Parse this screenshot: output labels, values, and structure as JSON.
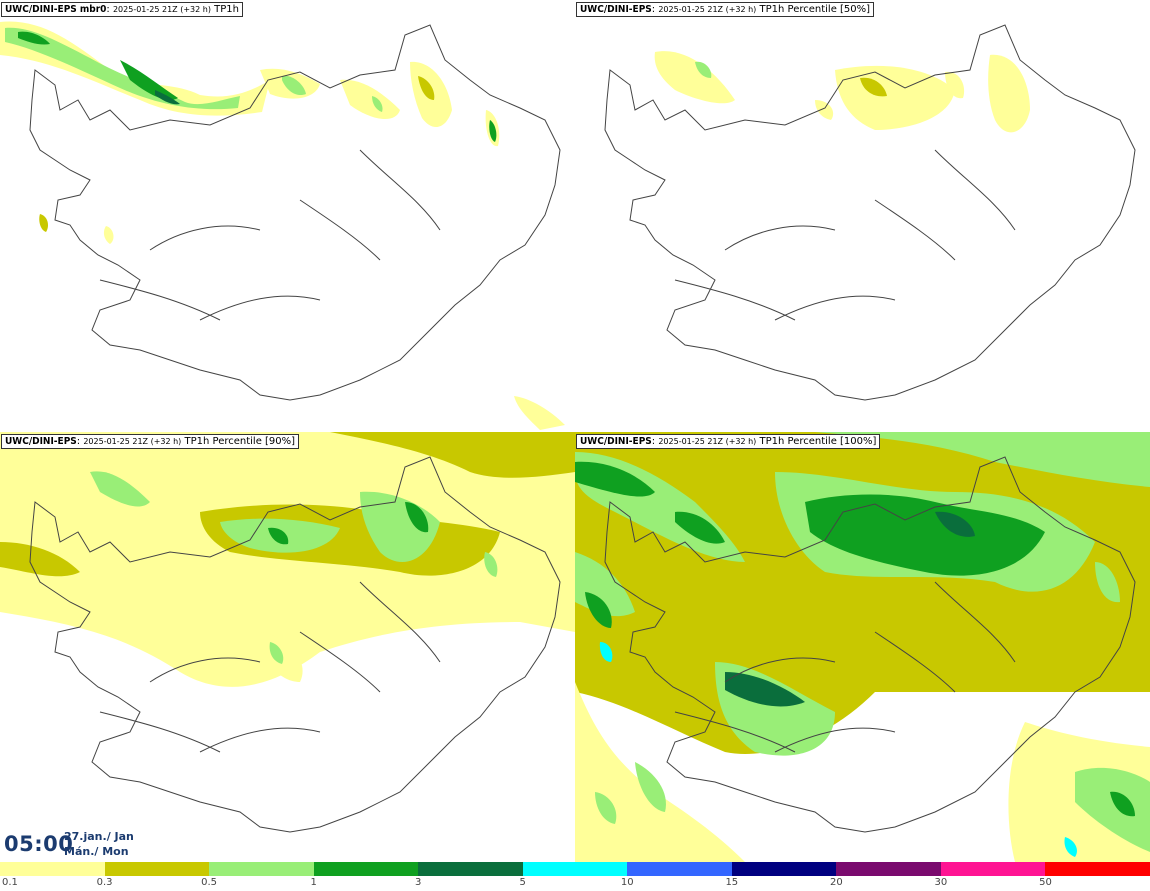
{
  "panels": [
    {
      "model": "UWC/DINI-EPS mbr0",
      "run": "2025-01-25 21Z (+32 h)",
      "field": "TP1h"
    },
    {
      "model": "UWC/DINI-EPS",
      "run": "2025-01-25 21Z (+32 h)",
      "field": "TP1h Percentile [50%]"
    },
    {
      "model": "UWC/DINI-EPS",
      "run": "2025-01-25 21Z (+32 h)",
      "field": "TP1h Percentile [90%]"
    },
    {
      "model": "UWC/DINI-EPS",
      "run": "2025-01-25 21Z (+32 h)",
      "field": "TP1h Percentile [100%]"
    }
  ],
  "time": {
    "clock": "05:00",
    "date": "27.jan./ Jan",
    "weekday": "Mán./ Mon"
  },
  "legend": {
    "colors": [
      "#ffff99",
      "#c8c800",
      "#99ee77",
      "#0fa020",
      "#0a6e3c",
      "#00ffff",
      "#3366ff",
      "#000080",
      "#7a0a6e",
      "#ff1493",
      "#ff0000"
    ],
    "ticks": [
      "0.1",
      "0.3",
      "0.5",
      "1",
      "3",
      "5",
      "10",
      "15",
      "20",
      "30",
      "50"
    ]
  },
  "colors": {
    "coast": "#444444",
    "pale_yellow": "#ffff99",
    "olive": "#c8c800",
    "light_green": "#99ee77",
    "green": "#0fa020",
    "dark_green": "#0a6e3c",
    "cyan": "#00ffff"
  }
}
